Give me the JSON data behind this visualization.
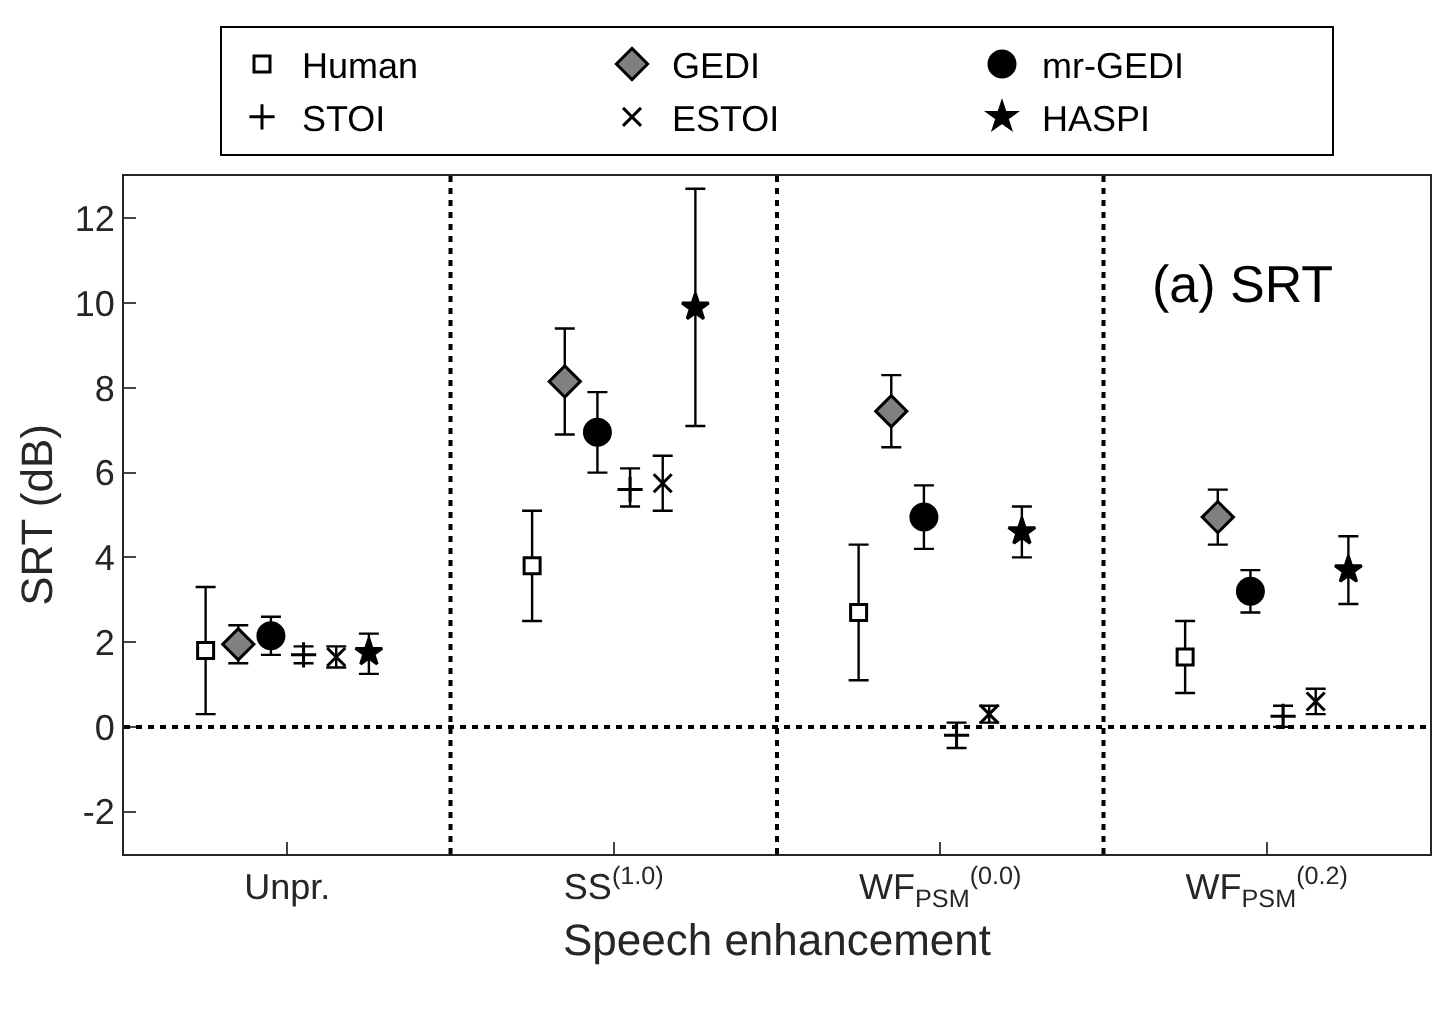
{
  "chart_data": {
    "type": "scatter",
    "categories": [
      "Unpr.",
      "SS$^{(1.0)}$",
      "WF$_{PSM}$$^{(0.0)}$",
      "WF$_{PSM}$$^{(0.2)}$"
    ],
    "xlabel": "Speech enhancement",
    "ylabel": "SRT (dB)",
    "ylim": [
      -3,
      13
    ],
    "yticks": [
      -2,
      0,
      2,
      4,
      6,
      8,
      10,
      12
    ],
    "grid": false,
    "legend": "top",
    "annotations": [
      "(a) SRT"
    ],
    "ref_lines": [
      {
        "axis": "y",
        "value": 0,
        "line_style": "dotted",
        "color": "#000000"
      }
    ],
    "series": [
      {
        "name": "Human",
        "color": "#ffffff",
        "marker": "square",
        "values": [
          1.8,
          3.8,
          2.7,
          1.65
        ],
        "errors": [
          [
            0.3,
            3.3
          ],
          [
            2.5,
            5.1
          ],
          [
            1.1,
            4.3
          ],
          [
            0.8,
            2.5
          ]
        ]
      },
      {
        "name": "GEDI",
        "color": "#808080",
        "marker": "diamond",
        "values": [
          1.95,
          8.15,
          7.45,
          4.95
        ],
        "errors": [
          [
            1.5,
            2.4
          ],
          [
            6.9,
            9.4
          ],
          [
            6.6,
            8.3
          ],
          [
            4.3,
            5.6
          ]
        ]
      },
      {
        "name": "mr-GEDI",
        "color": "#000000",
        "marker": "circle",
        "values": [
          2.15,
          6.95,
          4.95,
          3.2
        ],
        "errors": [
          [
            1.7,
            2.6
          ],
          [
            6.0,
            7.9
          ],
          [
            4.2,
            5.7
          ],
          [
            2.7,
            3.7
          ]
        ]
      },
      {
        "name": "STOI",
        "color": "#000000",
        "marker": "cross",
        "values": [
          1.7,
          5.6,
          -0.2,
          0.25
        ],
        "errors": [
          [
            1.5,
            1.9
          ],
          [
            5.2,
            6.1
          ],
          [
            -0.5,
            0.1
          ],
          [
            0.0,
            0.5
          ]
        ]
      },
      {
        "name": "ESTOI",
        "color": "#000000",
        "marker": "cross",
        "values": [
          1.65,
          5.75,
          0.3,
          0.6
        ],
        "errors": [
          [
            1.4,
            1.9
          ],
          [
            5.1,
            6.4
          ],
          [
            0.1,
            0.5
          ],
          [
            0.3,
            0.9
          ]
        ]
      },
      {
        "name": "HASPI",
        "color": "#000000",
        "marker": "star",
        "values": [
          1.75,
          9.9,
          4.6,
          3.7
        ],
        "errors": [
          [
            1.25,
            2.2
          ],
          [
            7.1,
            12.7
          ],
          [
            4.0,
            5.2
          ],
          [
            2.9,
            4.5
          ]
        ]
      }
    ]
  }
}
